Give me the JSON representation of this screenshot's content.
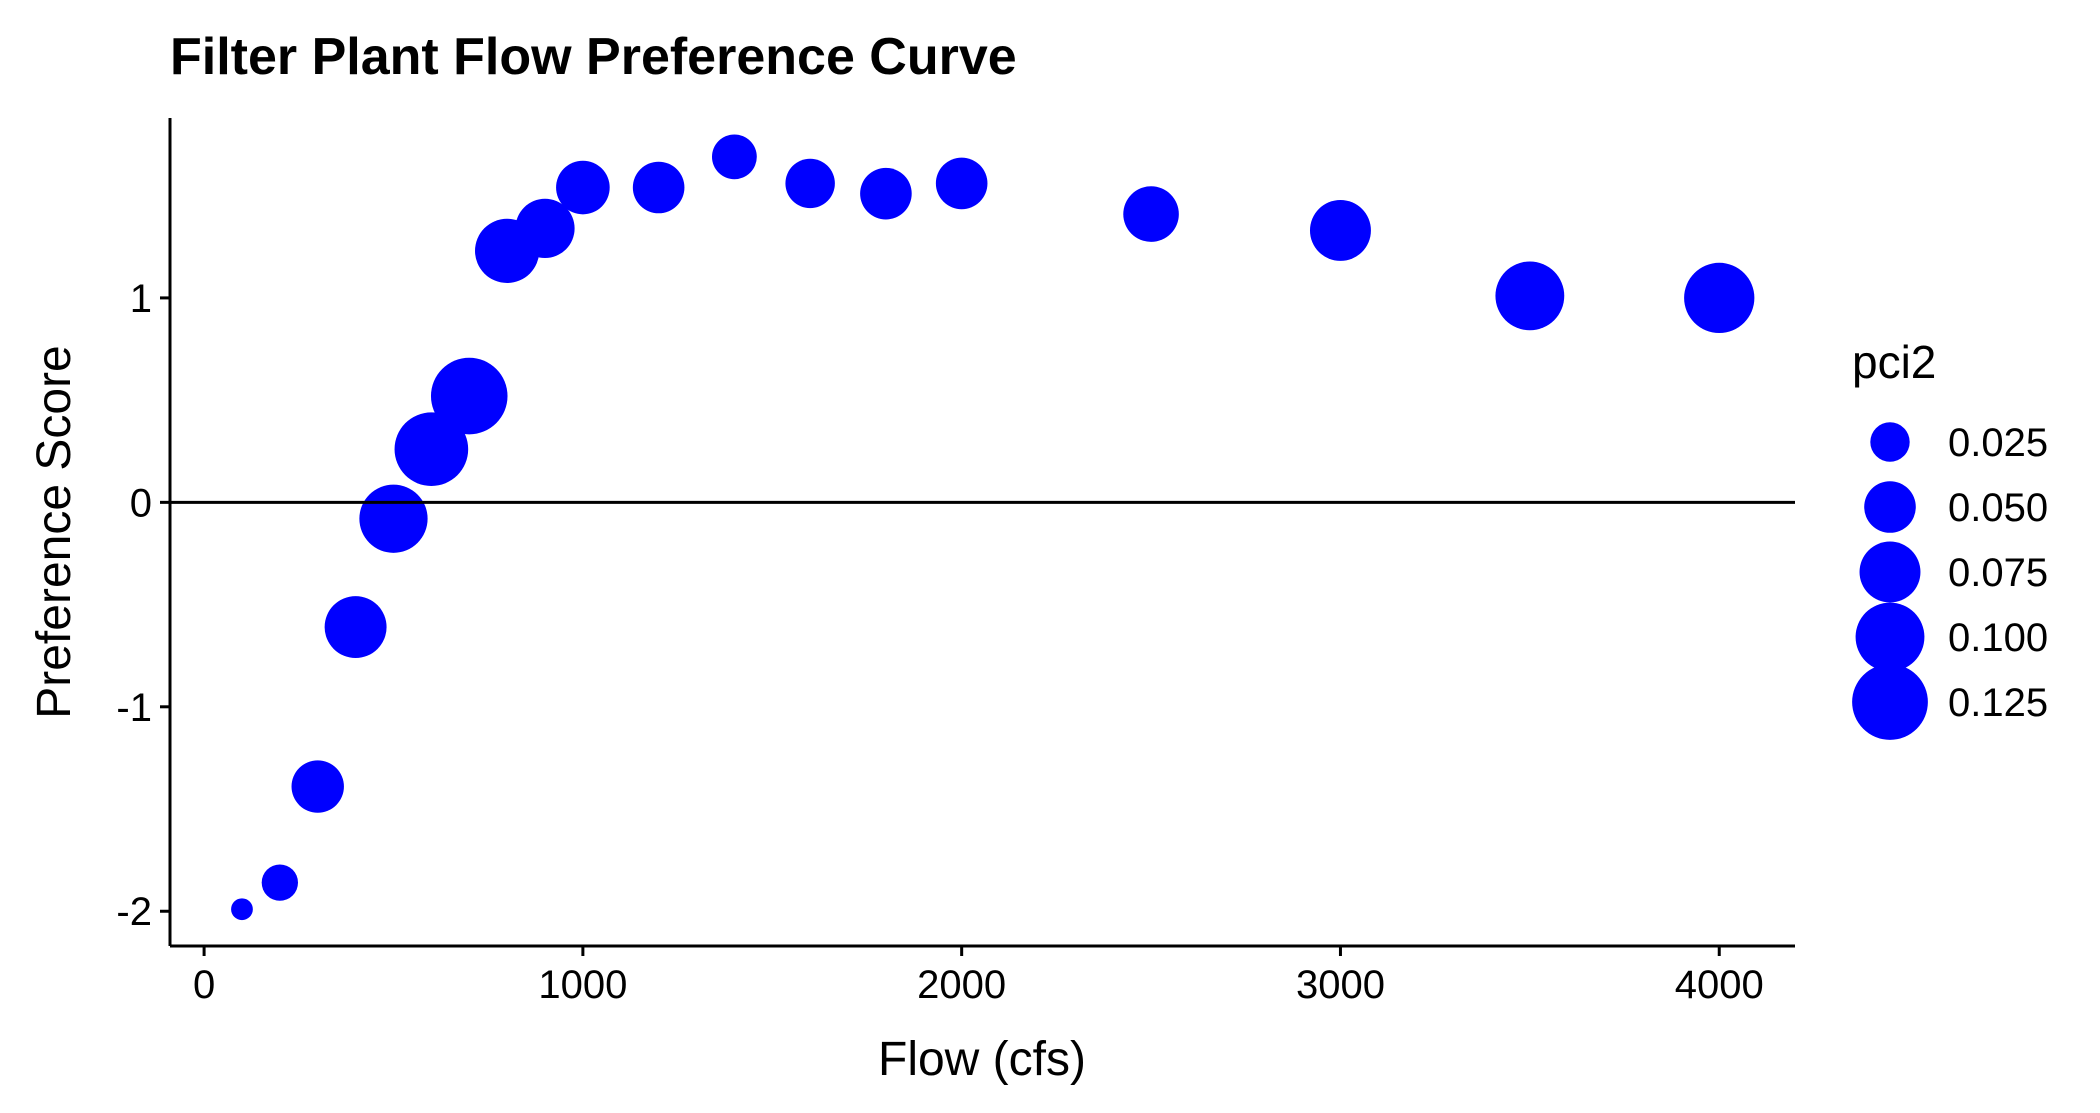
{
  "chart_data": {
    "type": "scatter",
    "title": "Filter Plant Flow Preference Curve",
    "xlabel": "Flow (cfs)",
    "ylabel": "Preference Score",
    "xlim": [
      -90,
      4200
    ],
    "ylim": [
      -2.17,
      1.88
    ],
    "x_ticks": [
      0,
      1000,
      2000,
      3000,
      4000
    ],
    "x_tick_labels": [
      "0",
      "1000",
      "2000",
      "3000",
      "4000"
    ],
    "y_ticks": [
      -2,
      -1,
      0,
      1
    ],
    "y_tick_labels": [
      "-2",
      "-1",
      "0",
      "1"
    ],
    "reference_line": {
      "y": 0
    },
    "grid": false,
    "point_color": "#0000ff",
    "legend": {
      "title": "pci2",
      "position": "right",
      "entries": [
        {
          "label": "0.025",
          "size": 0.025
        },
        {
          "label": "0.050",
          "size": 0.05
        },
        {
          "label": "0.075",
          "size": 0.075
        },
        {
          "label": "0.100",
          "size": 0.1
        },
        {
          "label": "0.125",
          "size": 0.125
        }
      ]
    },
    "series": [
      {
        "points": [
          {
            "x": 100,
            "y": -1.99,
            "size": 0.004
          },
          {
            "x": 200,
            "y": -1.86,
            "size": 0.02
          },
          {
            "x": 300,
            "y": -1.39,
            "size": 0.052
          },
          {
            "x": 400,
            "y": -0.61,
            "size": 0.078
          },
          {
            "x": 500,
            "y": -0.08,
            "size": 0.098
          },
          {
            "x": 600,
            "y": 0.26,
            "size": 0.117
          },
          {
            "x": 700,
            "y": 0.52,
            "size": 0.128
          },
          {
            "x": 800,
            "y": 1.23,
            "size": 0.085
          },
          {
            "x": 900,
            "y": 1.34,
            "size": 0.07
          },
          {
            "x": 1000,
            "y": 1.54,
            "size": 0.055
          },
          {
            "x": 1200,
            "y": 1.54,
            "size": 0.05
          },
          {
            "x": 1400,
            "y": 1.69,
            "size": 0.035
          },
          {
            "x": 1600,
            "y": 1.56,
            "size": 0.045
          },
          {
            "x": 1800,
            "y": 1.51,
            "size": 0.05
          },
          {
            "x": 2000,
            "y": 1.56,
            "size": 0.05
          },
          {
            "x": 2500,
            "y": 1.41,
            "size": 0.06
          },
          {
            "x": 3000,
            "y": 1.33,
            "size": 0.075
          },
          {
            "x": 3500,
            "y": 1.01,
            "size": 0.1
          },
          {
            "x": 4000,
            "y": 1.0,
            "size": 0.105
          }
        ]
      }
    ]
  }
}
